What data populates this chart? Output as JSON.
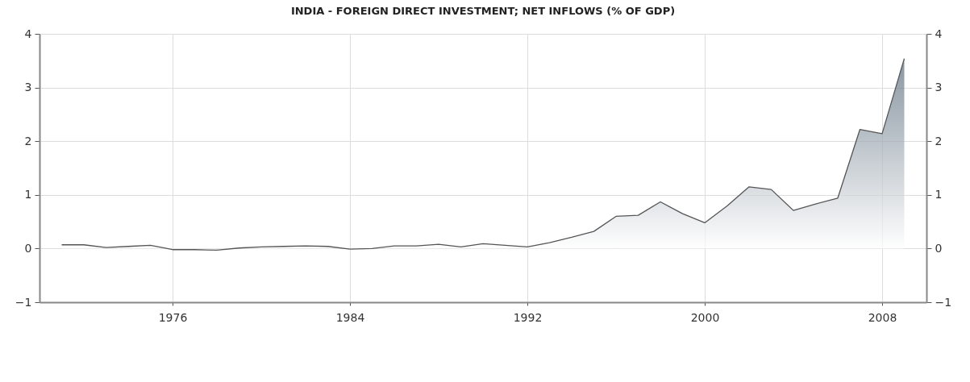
{
  "chart_data": {
    "type": "area",
    "title": "INDIA - FOREIGN DIRECT INVESTMENT; NET INFLOWS (% OF GDP)",
    "x": [
      1971,
      1972,
      1973,
      1974,
      1975,
      1976,
      1977,
      1978,
      1979,
      1980,
      1981,
      1982,
      1983,
      1984,
      1985,
      1986,
      1987,
      1988,
      1989,
      1990,
      1991,
      1992,
      1993,
      1994,
      1995,
      1996,
      1997,
      1998,
      1999,
      2000,
      2001,
      2002,
      2003,
      2004,
      2005,
      2006,
      2007,
      2008,
      2009
    ],
    "series": [
      {
        "color": "#56697a",
        "values": [
          0.07,
          0.07,
          0.02,
          0.04,
          0.06,
          -0.02,
          -0.02,
          -0.03,
          0.01,
          0.03,
          0.04,
          0.05,
          0.04,
          -0.01,
          0.0,
          0.05,
          0.05,
          0.08,
          0.03,
          0.09,
          0.06,
          0.03,
          0.11,
          0.21,
          0.32,
          0.6,
          0.62,
          0.87,
          0.65,
          0.48,
          0.79,
          1.15,
          1.1,
          0.71,
          0.83,
          0.94,
          2.22,
          2.14,
          3.54
        ]
      }
    ],
    "xlim": [
      1970,
      2010
    ],
    "xticks": [
      1976,
      1984,
      1992,
      2000,
      2008
    ],
    "ylim": [
      -1,
      4
    ],
    "yticks": [
      -1,
      0,
      1,
      2,
      3,
      4
    ],
    "y2lim": [
      -1,
      4
    ],
    "y2ticks": [
      -1,
      0,
      1,
      2,
      3,
      4
    ],
    "grid": true
  }
}
